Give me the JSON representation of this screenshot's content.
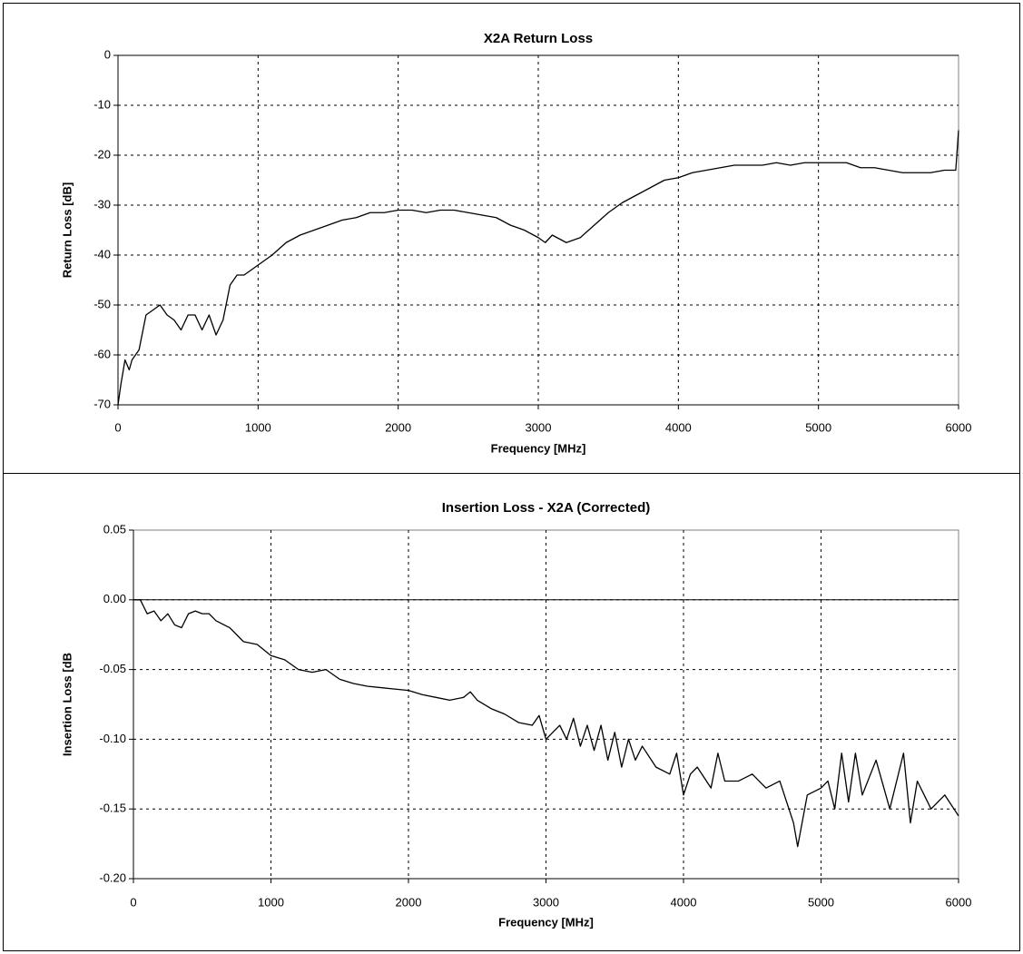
{
  "chart_data": [
    {
      "type": "line",
      "title": "X2A Return Loss",
      "xlabel": "Frequency [MHz]",
      "ylabel": "Return Loss [dB]",
      "color": "#000000",
      "grid": true,
      "xlim": [
        0,
        6000
      ],
      "xticks": [
        0,
        1000,
        2000,
        3000,
        4000,
        5000,
        6000
      ],
      "ylim": [
        -70,
        0
      ],
      "yticks": [
        0,
        -10,
        -20,
        -30,
        -40,
        -50,
        -60,
        -70
      ],
      "x": [
        0,
        20,
        50,
        80,
        100,
        150,
        200,
        250,
        300,
        350,
        400,
        450,
        500,
        550,
        600,
        650,
        700,
        750,
        800,
        850,
        900,
        950,
        1000,
        1100,
        1200,
        1300,
        1400,
        1500,
        1600,
        1700,
        1800,
        1900,
        2000,
        2100,
        2200,
        2300,
        2400,
        2500,
        2600,
        2700,
        2800,
        2900,
        3000,
        3050,
        3100,
        3200,
        3300,
        3400,
        3500,
        3600,
        3700,
        3800,
        3900,
        4000,
        4100,
        4200,
        4300,
        4400,
        4500,
        4600,
        4700,
        4800,
        4900,
        5000,
        5100,
        5200,
        5300,
        5400,
        5500,
        5600,
        5700,
        5800,
        5900,
        5980,
        6000
      ],
      "values": [
        -70,
        -66,
        -61,
        -63,
        -61,
        -59,
        -52,
        -51,
        -50,
        -52,
        -53,
        -55,
        -52,
        -52,
        -55,
        -52,
        -56,
        -53,
        -46,
        -44,
        -44,
        -43,
        -42,
        -40,
        -37.5,
        -36,
        -35,
        -34,
        -33,
        -32.5,
        -31.5,
        -31.5,
        -31,
        -31,
        -31.5,
        -31,
        -31,
        -31.5,
        -32,
        -32.5,
        -34,
        -35,
        -36.5,
        -37.5,
        -36,
        -37.5,
        -36.5,
        -34,
        -31.5,
        -29.5,
        -28,
        -26.5,
        -25,
        -24.5,
        -23.5,
        -23,
        -22.5,
        -22,
        -22,
        -22,
        -21.5,
        -22,
        -21.5,
        -21.5,
        -21.5,
        -21.5,
        -22.5,
        -22.5,
        -23,
        -23.5,
        -23.5,
        -23.5,
        -23,
        -23,
        -15
      ]
    },
    {
      "type": "line",
      "title": "Insertion Loss - X2A  (Corrected)",
      "xlabel": "Frequency [MHz]",
      "ylabel": "Insertion Loss [dB",
      "color": "#000000",
      "grid": true,
      "xlim": [
        0,
        6000
      ],
      "xticks": [
        0,
        1000,
        2000,
        3000,
        4000,
        5000,
        6000
      ],
      "ylim": [
        -0.2,
        0.05
      ],
      "yticks": [
        0.05,
        {
          "value": 0,
          "label": "0.00"
        },
        -0.05,
        {
          "value": -0.1,
          "label": "-0.10"
        },
        -0.15,
        {
          "value": -0.2,
          "label": "-0.20"
        }
      ],
      "x": [
        0,
        50,
        80,
        100,
        150,
        200,
        250,
        300,
        350,
        400,
        450,
        500,
        550,
        600,
        700,
        800,
        900,
        1000,
        1100,
        1200,
        1300,
        1400,
        1500,
        1600,
        1700,
        1800,
        1900,
        2000,
        2100,
        2200,
        2300,
        2400,
        2450,
        2500,
        2600,
        2700,
        2800,
        2900,
        2950,
        3000,
        3100,
        3150,
        3200,
        3250,
        3300,
        3350,
        3400,
        3450,
        3500,
        3550,
        3600,
        3650,
        3700,
        3800,
        3900,
        3950,
        4000,
        4050,
        4100,
        4200,
        4250,
        4300,
        4400,
        4500,
        4600,
        4700,
        4800,
        4830,
        4900,
        5000,
        5050,
        5100,
        5150,
        5200,
        5250,
        5300,
        5400,
        5500,
        5600,
        5650,
        5700,
        5800,
        5900,
        6000
      ],
      "values": [
        0,
        0,
        -0.006,
        -0.01,
        -0.008,
        -0.015,
        -0.01,
        -0.018,
        -0.02,
        -0.01,
        -0.008,
        -0.01,
        -0.01,
        -0.015,
        -0.02,
        -0.03,
        -0.032,
        -0.04,
        -0.043,
        -0.05,
        -0.052,
        -0.05,
        -0.057,
        -0.06,
        -0.062,
        -0.063,
        -0.064,
        -0.065,
        -0.068,
        -0.07,
        -0.072,
        -0.07,
        -0.066,
        -0.072,
        -0.078,
        -0.082,
        -0.088,
        -0.09,
        -0.083,
        -0.1,
        -0.09,
        -0.1,
        -0.085,
        -0.105,
        -0.09,
        -0.108,
        -0.09,
        -0.115,
        -0.095,
        -0.12,
        -0.1,
        -0.115,
        -0.105,
        -0.12,
        -0.125,
        -0.11,
        -0.14,
        -0.125,
        -0.12,
        -0.135,
        -0.11,
        -0.13,
        -0.13,
        -0.125,
        -0.135,
        -0.13,
        -0.16,
        -0.177,
        -0.14,
        -0.135,
        -0.13,
        -0.15,
        -0.11,
        -0.145,
        -0.11,
        -0.14,
        -0.115,
        -0.15,
        -0.11,
        -0.16,
        -0.13,
        -0.15,
        -0.14,
        -0.155
      ]
    }
  ]
}
